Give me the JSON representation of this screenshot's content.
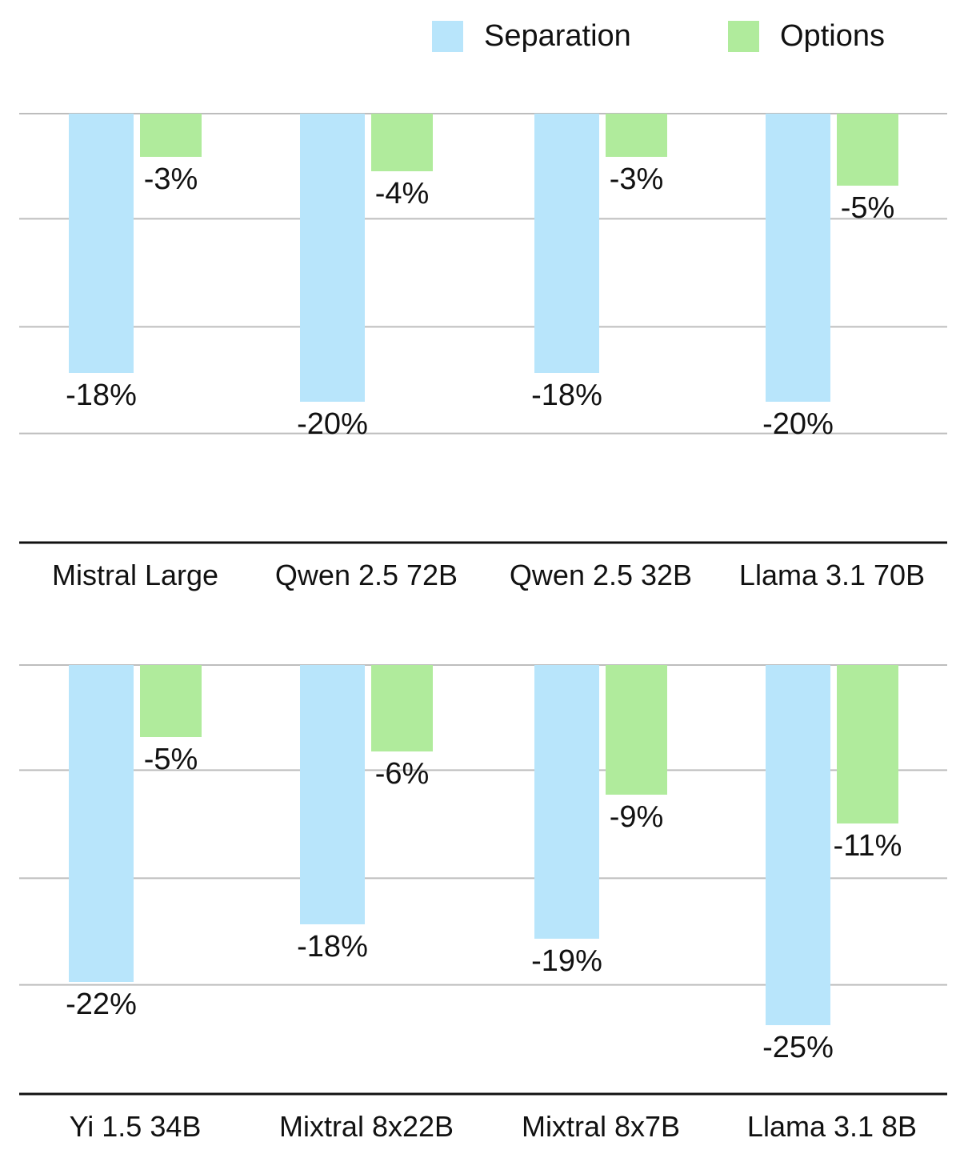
{
  "legend": {
    "series_a": "Separation",
    "series_b": "Options"
  },
  "colors": {
    "separation": "#b8e5fb",
    "options": "#b0eb9c",
    "gridline": "#bdbdbd",
    "axis": "#111111",
    "text": "#111111"
  },
  "chart_data": [
    {
      "type": "bar",
      "categories": [
        "Mistral Large",
        "Qwen 2.5 72B",
        "Qwen 2.5 32B",
        "Llama 3.1 70B"
      ],
      "series": [
        {
          "name": "Separation",
          "values": [
            -18,
            -20,
            -18,
            -20
          ],
          "labels": [
            "-18%",
            "-20%",
            "-18%",
            "-20%"
          ]
        },
        {
          "name": "Options",
          "values": [
            -3,
            -4,
            -3,
            -5
          ],
          "labels": [
            "-3%",
            "-4%",
            "-3%",
            "-5%"
          ]
        }
      ],
      "ylim": [
        -30,
        0
      ],
      "grid": true,
      "legend": "top-right"
    },
    {
      "type": "bar",
      "categories": [
        "Yi 1.5 34B",
        "Mixtral 8x22B",
        "Mixtral 8x7B",
        "Llama 3.1 8B"
      ],
      "series": [
        {
          "name": "Separation",
          "values": [
            -22,
            -18,
            -19,
            -25
          ],
          "labels": [
            "-22%",
            "-18%",
            "-19%",
            "-25%"
          ]
        },
        {
          "name": "Options",
          "values": [
            -5,
            -6,
            -9,
            -11
          ],
          "labels": [
            "-5%",
            "-6%",
            "-9%",
            "-11%"
          ]
        }
      ],
      "ylim": [
        -30,
        0
      ],
      "grid": true,
      "legend": "top-right"
    }
  ]
}
